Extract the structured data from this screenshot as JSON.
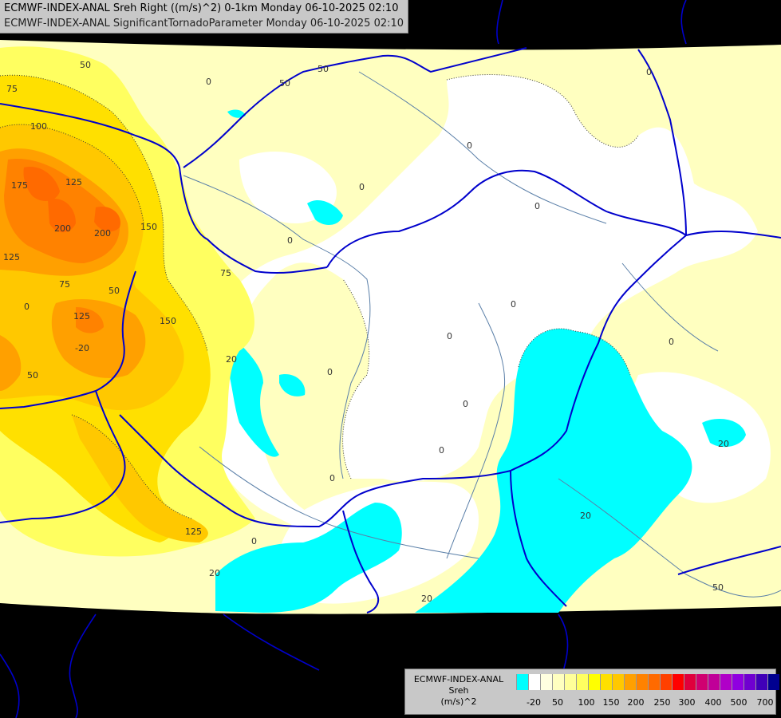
{
  "header": {
    "line1": "ECMWF-INDEX-ANAL Sreh Right ((m/s)^2) 0-1km Monday 06-10-2025 02:10",
    "line2": "ECMWF-INDEX-ANAL SignificantTornadoParameter Monday 06-10-2025 02:10"
  },
  "legend": {
    "model": "ECMWF-INDEX-ANAL",
    "parameter": "Sreh",
    "unit": "(m/s)^2",
    "colors": [
      "#00ffff",
      "#ffffff",
      "#ffffe0",
      "#ffffc0",
      "#ffff9a",
      "#ffff60",
      "#ffff00",
      "#ffe000",
      "#ffc800",
      "#ffa000",
      "#ff8200",
      "#ff6a00",
      "#ff4000",
      "#ff0000",
      "#e0003c",
      "#d00070",
      "#c00098",
      "#b000c8",
      "#9000e0",
      "#7000d0",
      "#4000b8",
      "#000090"
    ],
    "tick_labels": [
      "-20",
      "50",
      "100",
      "150",
      "200",
      "250",
      "300",
      "400",
      "500",
      "700"
    ]
  },
  "map": {
    "colors": {
      "background": "#000000",
      "negative": "#00ffff",
      "zero": "#ffffff",
      "low": "#ffffc0",
      "mid": "#ffff60",
      "high": "#ffe000",
      "higher": "#ffc800",
      "very_high": "#ffa000",
      "extreme": "#ff8200",
      "peak": "#ff4000",
      "borders": "#0000cc",
      "rivers": "#5a7fa8"
    },
    "contour_labels": [
      "75",
      "100",
      "50",
      "50",
      "50",
      "0",
      "0",
      "0",
      "0",
      "0",
      "0",
      "0",
      "175",
      "125",
      "200",
      "200",
      "150",
      "125",
      "75",
      "50",
      "0",
      "125",
      "150",
      "75",
      "50",
      "0",
      "0",
      "20",
      "0",
      "0",
      "20",
      "0",
      "125",
      "20",
      "0",
      "20",
      "0",
      "20",
      "50",
      "-20"
    ]
  }
}
